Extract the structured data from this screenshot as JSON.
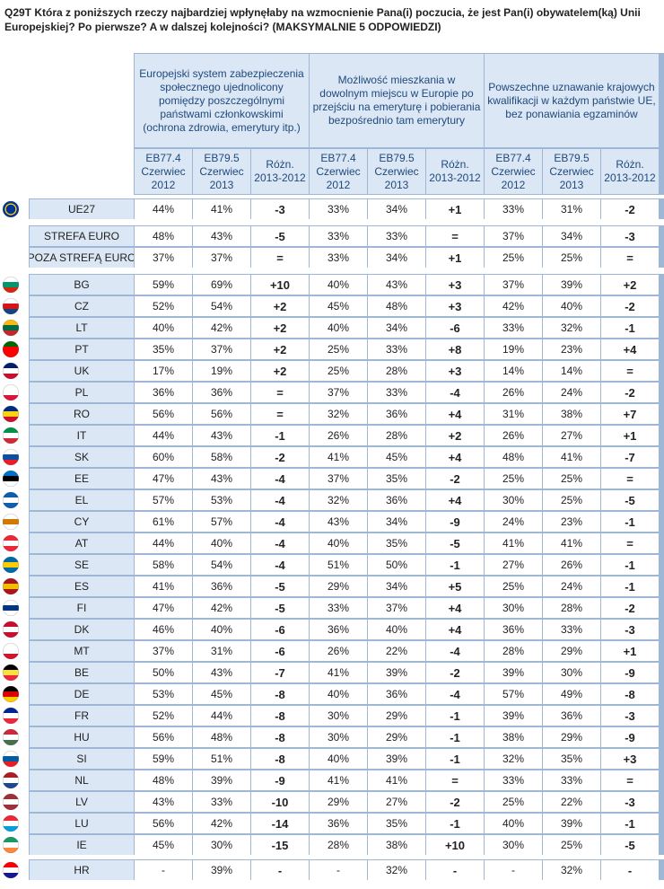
{
  "title": "Q29T Która z poniższych rzeczy najbardziej wpłynęłaby na wzmocnienie Pana(i) poczucia, że jest Pan(i) obywatelem(ką) Unii Europejskiej? Po pierwsze? A w dalszej kolejności? (MAKSYMALNIE 5 ODPOWIEDZI)",
  "chart_data": {
    "type": "table",
    "column_groups": [
      "Europejski system zabezpieczenia społecznego ujednolicony pomiędzy poszczególnymi państwami członkowskimi (ochrona zdrowia, emerytury itp.)",
      "Możliwość mieszkania w dowolnym miejscu w Europie po przejściu na emeryturę i pobierania bezpośrednio tam emerytury",
      "Powszechne uznawanie krajowych kwalifikacji w każdym państwie UE, bez ponawiania egzaminów"
    ],
    "sub_columns": [
      "EB77.4 Czerwiec 2012",
      "EB79.5 Czerwiec 2013",
      "Różn. 2013-2012"
    ],
    "groups": [
      {
        "rows": [
          {
            "label": "UE27",
            "flag": "eu",
            "values": [
              "44%",
              "41%",
              "-3",
              "33%",
              "34%",
              "+1",
              "33%",
              "31%",
              "-2"
            ]
          }
        ]
      },
      {
        "rows": [
          {
            "label": "STREFA EURO",
            "flag": "",
            "values": [
              "48%",
              "43%",
              "-5",
              "33%",
              "33%",
              "=",
              "37%",
              "34%",
              "-3"
            ]
          },
          {
            "label": "POZA STREFĄ EURO",
            "flag": "",
            "values": [
              "37%",
              "37%",
              "=",
              "33%",
              "34%",
              "+1",
              "25%",
              "25%",
              "="
            ]
          }
        ]
      },
      {
        "rows": [
          {
            "label": "BG",
            "flag": "bg",
            "values": [
              "59%",
              "69%",
              "+10",
              "40%",
              "43%",
              "+3",
              "37%",
              "39%",
              "+2"
            ]
          },
          {
            "label": "CZ",
            "flag": "cz",
            "values": [
              "52%",
              "54%",
              "+2",
              "45%",
              "48%",
              "+3",
              "42%",
              "40%",
              "-2"
            ]
          },
          {
            "label": "LT",
            "flag": "lt",
            "values": [
              "40%",
              "42%",
              "+2",
              "40%",
              "34%",
              "-6",
              "33%",
              "32%",
              "-1"
            ]
          },
          {
            "label": "PT",
            "flag": "pt",
            "values": [
              "35%",
              "37%",
              "+2",
              "25%",
              "33%",
              "+8",
              "19%",
              "23%",
              "+4"
            ]
          },
          {
            "label": "UK",
            "flag": "uk",
            "values": [
              "17%",
              "19%",
              "+2",
              "25%",
              "28%",
              "+3",
              "14%",
              "14%",
              "="
            ]
          },
          {
            "label": "PL",
            "flag": "pl",
            "values": [
              "36%",
              "36%",
              "=",
              "37%",
              "33%",
              "-4",
              "26%",
              "24%",
              "-2"
            ]
          },
          {
            "label": "RO",
            "flag": "ro",
            "values": [
              "56%",
              "56%",
              "=",
              "32%",
              "36%",
              "+4",
              "31%",
              "38%",
              "+7"
            ]
          },
          {
            "label": "IT",
            "flag": "it",
            "values": [
              "44%",
              "43%",
              "-1",
              "26%",
              "28%",
              "+2",
              "26%",
              "27%",
              "+1"
            ]
          },
          {
            "label": "SK",
            "flag": "sk",
            "values": [
              "60%",
              "58%",
              "-2",
              "41%",
              "45%",
              "+4",
              "48%",
              "41%",
              "-7"
            ]
          },
          {
            "label": "EE",
            "flag": "ee",
            "values": [
              "47%",
              "43%",
              "-4",
              "37%",
              "35%",
              "-2",
              "25%",
              "25%",
              "="
            ]
          },
          {
            "label": "EL",
            "flag": "el",
            "values": [
              "57%",
              "53%",
              "-4",
              "32%",
              "36%",
              "+4",
              "30%",
              "25%",
              "-5"
            ]
          },
          {
            "label": "CY",
            "flag": "cy",
            "values": [
              "61%",
              "57%",
              "-4",
              "43%",
              "34%",
              "-9",
              "24%",
              "23%",
              "-1"
            ]
          },
          {
            "label": "AT",
            "flag": "at",
            "values": [
              "44%",
              "40%",
              "-4",
              "40%",
              "35%",
              "-5",
              "41%",
              "41%",
              "="
            ]
          },
          {
            "label": "SE",
            "flag": "se",
            "values": [
              "58%",
              "54%",
              "-4",
              "51%",
              "50%",
              "-1",
              "27%",
              "26%",
              "-1"
            ]
          },
          {
            "label": "ES",
            "flag": "es",
            "values": [
              "41%",
              "36%",
              "-5",
              "29%",
              "34%",
              "+5",
              "25%",
              "24%",
              "-1"
            ]
          },
          {
            "label": "FI",
            "flag": "fi",
            "values": [
              "47%",
              "42%",
              "-5",
              "33%",
              "37%",
              "+4",
              "30%",
              "28%",
              "-2"
            ]
          },
          {
            "label": "DK",
            "flag": "dk",
            "values": [
              "46%",
              "40%",
              "-6",
              "36%",
              "40%",
              "+4",
              "36%",
              "33%",
              "-3"
            ]
          },
          {
            "label": "MT",
            "flag": "mt",
            "values": [
              "37%",
              "31%",
              "-6",
              "26%",
              "22%",
              "-4",
              "28%",
              "29%",
              "+1"
            ]
          },
          {
            "label": "BE",
            "flag": "be",
            "values": [
              "50%",
              "43%",
              "-7",
              "41%",
              "39%",
              "-2",
              "39%",
              "30%",
              "-9"
            ]
          },
          {
            "label": "DE",
            "flag": "de",
            "values": [
              "53%",
              "45%",
              "-8",
              "40%",
              "36%",
              "-4",
              "57%",
              "49%",
              "-8"
            ]
          },
          {
            "label": "FR",
            "flag": "fr",
            "values": [
              "52%",
              "44%",
              "-8",
              "30%",
              "29%",
              "-1",
              "39%",
              "36%",
              "-3"
            ]
          },
          {
            "label": "HU",
            "flag": "hu",
            "values": [
              "56%",
              "48%",
              "-8",
              "30%",
              "29%",
              "-1",
              "38%",
              "29%",
              "-9"
            ]
          },
          {
            "label": "SI",
            "flag": "si",
            "values": [
              "59%",
              "51%",
              "-8",
              "40%",
              "39%",
              "-1",
              "32%",
              "35%",
              "+3"
            ]
          },
          {
            "label": "NL",
            "flag": "nl",
            "values": [
              "48%",
              "39%",
              "-9",
              "41%",
              "41%",
              "=",
              "33%",
              "33%",
              "="
            ]
          },
          {
            "label": "LV",
            "flag": "lv",
            "values": [
              "43%",
              "33%",
              "-10",
              "29%",
              "27%",
              "-2",
              "25%",
              "22%",
              "-3"
            ]
          },
          {
            "label": "LU",
            "flag": "lu",
            "values": [
              "56%",
              "42%",
              "-14",
              "36%",
              "35%",
              "-1",
              "40%",
              "39%",
              "-1"
            ]
          },
          {
            "label": "IE",
            "flag": "ie",
            "values": [
              "45%",
              "30%",
              "-15",
              "28%",
              "38%",
              "+10",
              "30%",
              "25%",
              "-5"
            ]
          }
        ]
      },
      {
        "rows": [
          {
            "label": "HR",
            "flag": "hr",
            "values": [
              "-",
              "39%",
              "-",
              "-",
              "32%",
              "-",
              "-",
              "32%",
              "-"
            ]
          }
        ]
      }
    ],
    "flag_colors": {
      "eu": [
        "#003399",
        "#003399",
        "#003399"
      ],
      "bg": [
        "#ffffff",
        "#00966e",
        "#d62612"
      ],
      "cz": [
        "#ffffff",
        "#d7141a",
        "#11457e"
      ],
      "lt": [
        "#fdb913",
        "#006a44",
        "#c1272d"
      ],
      "pt": [
        "#006600",
        "#ff0000",
        "#ff0000"
      ],
      "uk": [
        "#012169",
        "#ffffff",
        "#c8102e"
      ],
      "pl": [
        "#ffffff",
        "#ffffff",
        "#dc143c"
      ],
      "ro": [
        "#002b7f",
        "#fcd116",
        "#ce1126"
      ],
      "it": [
        "#009246",
        "#ffffff",
        "#ce2b37"
      ],
      "sk": [
        "#ffffff",
        "#0b4ea2",
        "#ee1c25"
      ],
      "ee": [
        "#0072ce",
        "#000000",
        "#ffffff"
      ],
      "el": [
        "#0d5eaf",
        "#ffffff",
        "#0d5eaf"
      ],
      "cy": [
        "#ffffff",
        "#d57800",
        "#ffffff"
      ],
      "at": [
        "#ed2939",
        "#ffffff",
        "#ed2939"
      ],
      "se": [
        "#006aa7",
        "#fecc00",
        "#006aa7"
      ],
      "es": [
        "#aa151b",
        "#f1bf00",
        "#aa151b"
      ],
      "fi": [
        "#ffffff",
        "#003580",
        "#ffffff"
      ],
      "dk": [
        "#c8102e",
        "#ffffff",
        "#c8102e"
      ],
      "mt": [
        "#ffffff",
        "#ffffff",
        "#cf142b"
      ],
      "be": [
        "#000000",
        "#fae042",
        "#ed2939"
      ],
      "de": [
        "#000000",
        "#dd0000",
        "#ffce00"
      ],
      "fr": [
        "#002395",
        "#ffffff",
        "#ed2939"
      ],
      "hu": [
        "#ce2939",
        "#ffffff",
        "#477050"
      ],
      "si": [
        "#ffffff",
        "#005da4",
        "#ed1c24"
      ],
      "nl": [
        "#ae1c28",
        "#ffffff",
        "#21468b"
      ],
      "lv": [
        "#9e3039",
        "#ffffff",
        "#9e3039"
      ],
      "lu": [
        "#ed2939",
        "#ffffff",
        "#00a1de"
      ],
      "ie": [
        "#169b62",
        "#ffffff",
        "#ff883e"
      ],
      "hr": [
        "#ff0000",
        "#ffffff",
        "#171796"
      ]
    }
  }
}
